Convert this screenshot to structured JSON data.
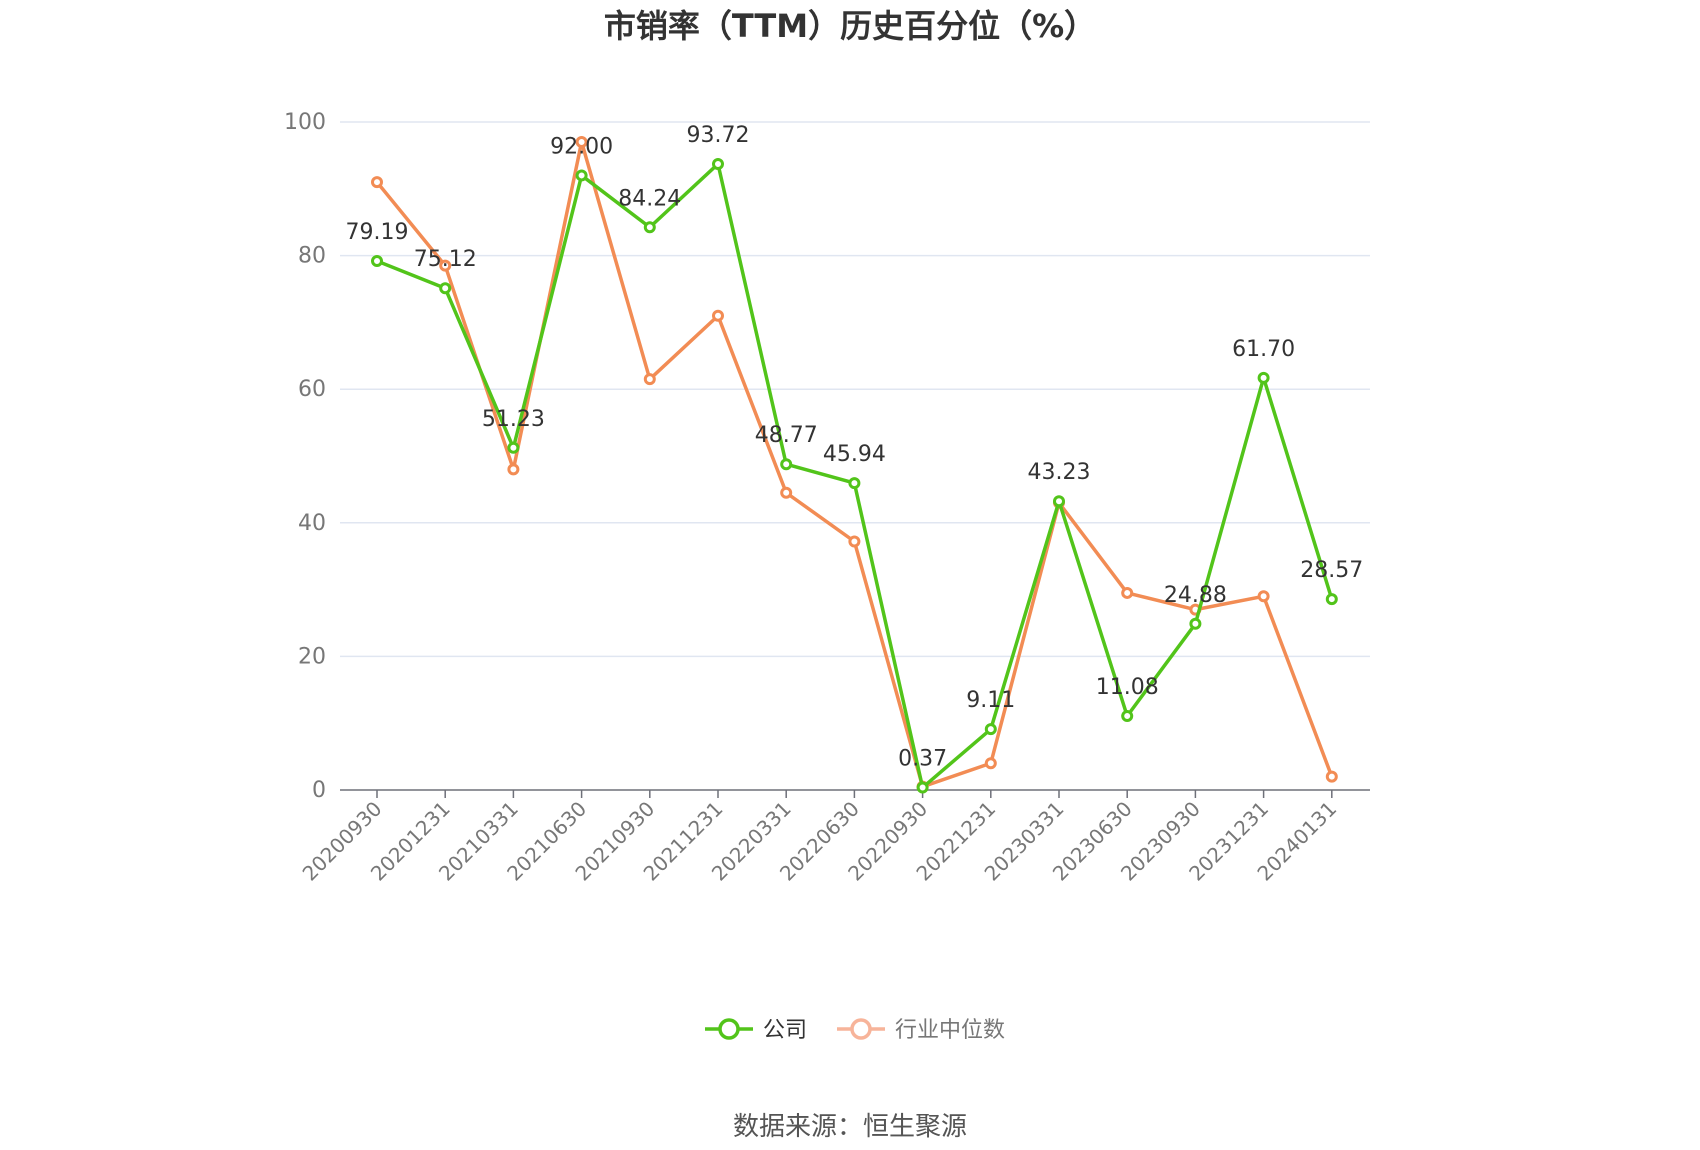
{
  "chart_data": {
    "type": "line",
    "title": "市销率（TTM）历史百分位（%）",
    "source": "数据来源：恒生聚源",
    "categories": [
      "20200930",
      "20201231",
      "20210331",
      "20210630",
      "20210930",
      "20211231",
      "20220331",
      "20220630",
      "20220930",
      "20221231",
      "20230331",
      "20230630",
      "20230930",
      "20231231",
      "20240131"
    ],
    "ylim": [
      0,
      100
    ],
    "yticks": [
      0,
      20,
      40,
      60,
      80,
      100
    ],
    "grid": true,
    "legend_position": "bottom",
    "series": [
      {
        "name": "公司",
        "color": "#52c41a",
        "values": [
          79.19,
          75.12,
          51.23,
          92.0,
          84.24,
          93.72,
          48.77,
          45.94,
          0.37,
          9.11,
          43.23,
          11.08,
          24.88,
          61.7,
          28.57
        ],
        "labels": [
          "79.19",
          "75.12",
          "51.23",
          "92.00",
          "84.24",
          "93.72",
          "48.77",
          "45.94",
          "0.37",
          "9.11",
          "43.23",
          "11.08",
          "24.88",
          "61.70",
          "28.57"
        ]
      },
      {
        "name": "行业中位数",
        "color": "#f28c54",
        "legend_color": "#f7b49a",
        "values": [
          91.0,
          78.5,
          48.0,
          97.0,
          61.5,
          71.0,
          44.5,
          37.2,
          0.5,
          4.0,
          43.0,
          29.5,
          27.0,
          29.0,
          2.0
        ]
      }
    ]
  }
}
